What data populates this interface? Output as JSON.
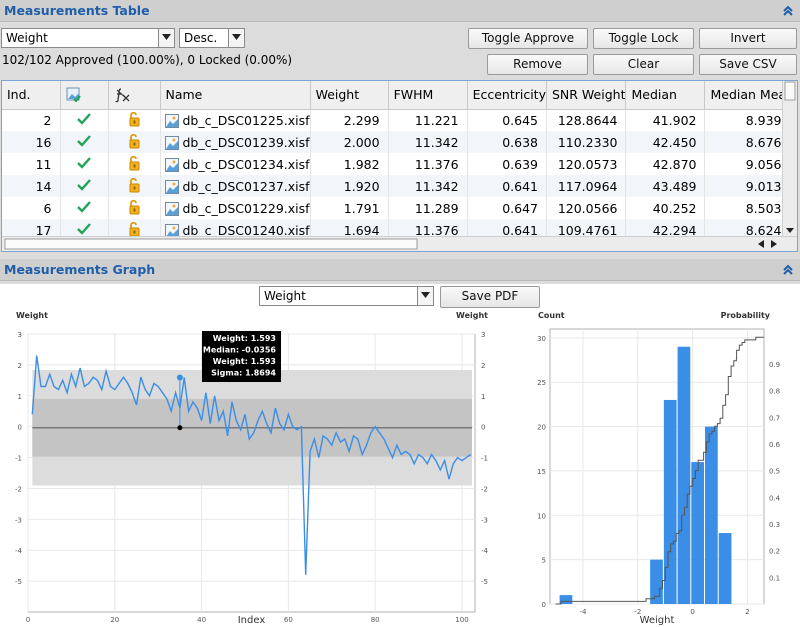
{
  "table_section": {
    "title": "Measurements Table"
  },
  "graph_section": {
    "title": "Measurements Graph"
  },
  "controls": {
    "sort_property": "Weight",
    "sort_order": "Desc.",
    "status": "102/102 Approved (100.00%), 0 Locked (0.00%)",
    "buttons": {
      "toggle_approve": "Toggle Approve",
      "toggle_lock": "Toggle Lock",
      "invert": "Invert",
      "remove": "Remove",
      "clear": "Clear",
      "save_csv": "Save CSV"
    }
  },
  "table": {
    "columns": [
      "Ind.",
      "",
      "",
      "Name",
      "Weight",
      "FWHM",
      "Eccentricity",
      "SNR Weight",
      "Median",
      "Median Mea"
    ],
    "rows": [
      {
        "ind": "2",
        "name": "db_c_DSC01225.xisf",
        "weight": "2.299",
        "fwhm": "11.221",
        "ecc": "0.645",
        "snr": "128.8644",
        "median": "41.902",
        "medmea": "8.939"
      },
      {
        "ind": "16",
        "name": "db_c_DSC01239.xisf",
        "weight": "2.000",
        "fwhm": "11.342",
        "ecc": "0.638",
        "snr": "110.2330",
        "median": "42.450",
        "medmea": "8.676"
      },
      {
        "ind": "11",
        "name": "db_c_DSC01234.xisf",
        "weight": "1.982",
        "fwhm": "11.376",
        "ecc": "0.639",
        "snr": "120.0573",
        "median": "42.870",
        "medmea": "9.056"
      },
      {
        "ind": "14",
        "name": "db_c_DSC01237.xisf",
        "weight": "1.920",
        "fwhm": "11.342",
        "ecc": "0.641",
        "snr": "117.0964",
        "median": "43.489",
        "medmea": "9.013"
      },
      {
        "ind": "6",
        "name": "db_c_DSC01229.xisf",
        "weight": "1.791",
        "fwhm": "11.289",
        "ecc": "0.647",
        "snr": "120.0566",
        "median": "40.252",
        "medmea": "8.503"
      },
      {
        "ind": "17",
        "name": "db_c_DSC01240.xisf",
        "weight": "1.694",
        "fwhm": "11.376",
        "ecc": "0.641",
        "snr": "109.4761",
        "median": "42.294",
        "medmea": "8.624"
      }
    ]
  },
  "graph_controls": {
    "property": "Weight",
    "save_pdf": "Save PDF"
  },
  "chart_data": [
    {
      "type": "line",
      "ylabel_left": "Weight",
      "ylabel_right": "Weight",
      "xlabel": "Index",
      "xlim": [
        0,
        103
      ],
      "ylim": [
        -6,
        3
      ],
      "xticks": [
        "0",
        "20",
        "40",
        "60",
        "80",
        "100"
      ],
      "yticks": [
        "3",
        "2",
        "1",
        "0",
        "-1",
        "-2",
        "-3",
        "-4",
        "-5"
      ],
      "median": -0.0356,
      "sigma": 1.8694,
      "tooltip": [
        "Weight: 1.593",
        "Median: -0.0356",
        "Weight: 1.593",
        "Sigma: 1.8694"
      ],
      "highlight": {
        "x": 35,
        "y": 1.593
      },
      "colors": {
        "line": "#3a8ee6",
        "band_outer": "#dcdcdc",
        "band_inner": "#c4c4c4"
      },
      "values": [
        0.4,
        2.3,
        1.3,
        1.3,
        1.7,
        1.3,
        1.2,
        1.5,
        1.1,
        1.7,
        1.3,
        1.9,
        1.3,
        1.4,
        1.6,
        1.5,
        1.2,
        1.8,
        1.3,
        1.2,
        1.4,
        1.6,
        1.4,
        1.1,
        0.7,
        1.6,
        1.2,
        1.0,
        1.4,
        1.3,
        1.1,
        0.9,
        0.5,
        1.1,
        0.6,
        1.593,
        0.5,
        0.8,
        0.6,
        0.2,
        1.1,
        0.1,
        1.0,
        0.2,
        0.5,
        -0.3,
        0.8,
        0.2,
        -0.1,
        0.4,
        -0.4,
        -0.2,
        0.2,
        0.5,
        0.1,
        -0.2,
        0.6,
        0.1,
        -0.1,
        0.4,
        0.0,
        -0.1,
        0.0,
        -4.8,
        -0.8,
        -0.4,
        -1.0,
        -0.3,
        -0.4,
        -0.6,
        -0.2,
        -0.5,
        -0.4,
        -0.8,
        -0.3,
        -0.4,
        -0.9,
        -0.6,
        -0.2,
        0.0,
        -0.2,
        -0.4,
        -0.7,
        -1.0,
        -0.6,
        -0.9,
        -0.8,
        -0.9,
        -1.2,
        -0.9,
        -1.0,
        -1.2,
        -0.9,
        -1.1,
        -1.4,
        -1.1,
        -1.7,
        -1.2,
        -1.0,
        -1.1,
        -1.0,
        -0.9
      ]
    },
    {
      "type": "bar",
      "ylabel_left": "Count",
      "ylabel_right": "Probability",
      "xlabel": "Weight",
      "xlim": [
        -5.2,
        2.6
      ],
      "ylim": [
        0,
        31
      ],
      "xticks": [
        "-4",
        "-2",
        "0",
        "2"
      ],
      "yticks": [
        "30",
        "25",
        "20",
        "15",
        "10",
        "5",
        "0"
      ],
      "pticks": [
        "0.9",
        "0.8",
        "0.7",
        "0.6",
        "0.5",
        "0.4",
        "0.3",
        "0.2",
        "0.1"
      ],
      "bins": [
        {
          "x0": -4.85,
          "x1": -4.35,
          "count": 1
        },
        {
          "x0": -1.55,
          "x1": -1.05,
          "count": 5
        },
        {
          "x0": -1.05,
          "x1": -0.55,
          "count": 23
        },
        {
          "x0": -0.55,
          "x1": -0.05,
          "count": 29
        },
        {
          "x0": -0.05,
          "x1": 0.45,
          "count": 16
        },
        {
          "x0": 0.45,
          "x1": 0.95,
          "count": 20
        },
        {
          "x0": 0.95,
          "x1": 1.45,
          "count": 8
        }
      ],
      "colors": {
        "bar": "#3a8ee6",
        "cdf": "#555555"
      }
    }
  ]
}
